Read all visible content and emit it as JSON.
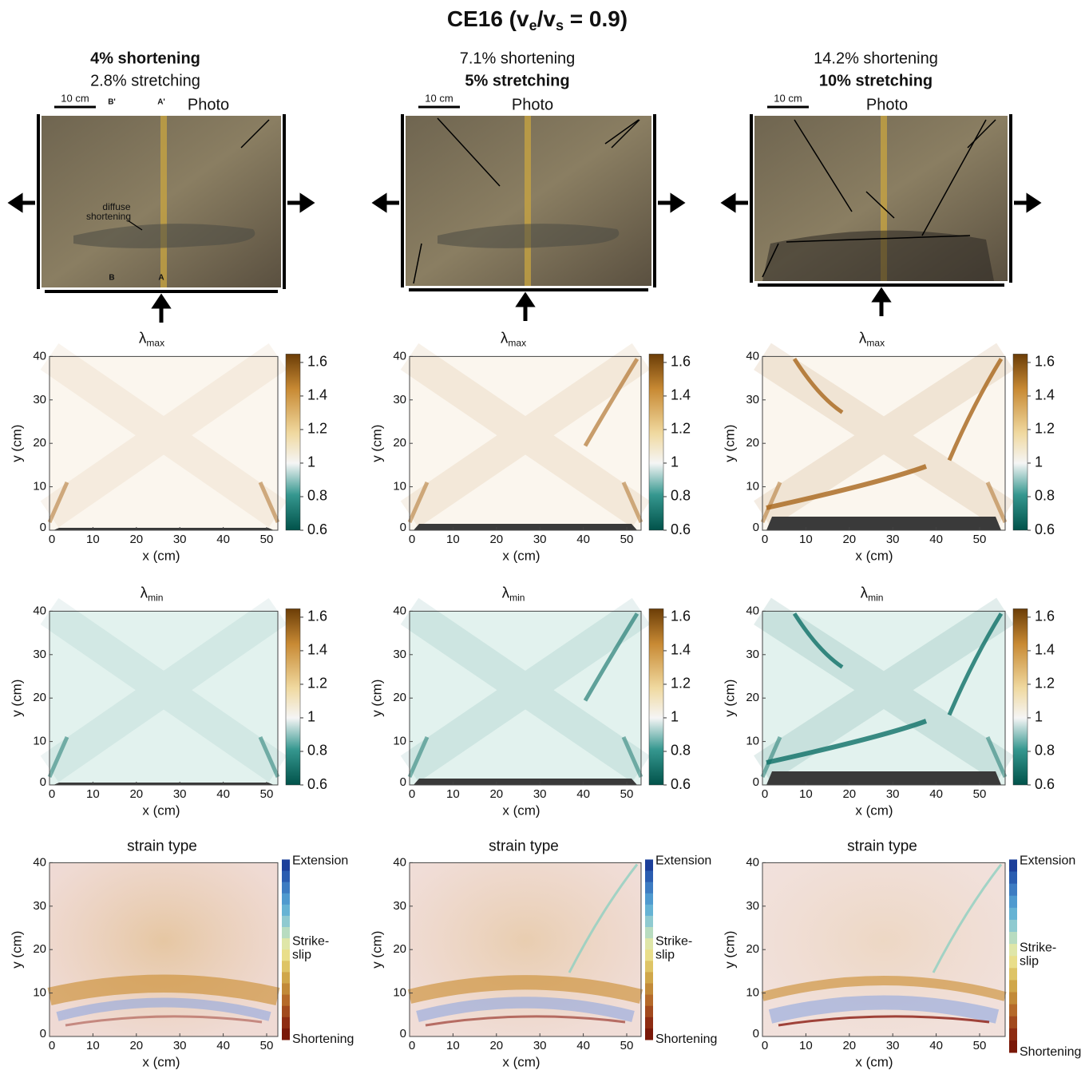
{
  "title": {
    "a": "CE16 (v",
    "b": "e",
    "c": "/v",
    "d": "s",
    "e": " = 0.9)"
  },
  "columns": [
    {
      "lines": [
        "4% shortening",
        "2.8% stretching"
      ],
      "bold": 0,
      "scale": "10 cm",
      "photo": "Photo"
    },
    {
      "lines": [
        "7.1% shortening",
        "5% stretching"
      ],
      "bold": 1,
      "scale": "10 cm",
      "photo": "Photo"
    },
    {
      "lines": [
        "14.2% shortening",
        "10% stretching"
      ],
      "bold": 1,
      "scale": "10 cm",
      "photo": "Photo"
    }
  ],
  "annotations": {
    "b_top": "B'",
    "a_top": "A'",
    "b_bottom": "B",
    "a_bottom": "A",
    "diffuse": [
      "diffuse",
      "shortening"
    ]
  },
  "lambda": {
    "symbol": "λ",
    "max": "max",
    "min": "min"
  },
  "axes": {
    "xlabel": "x (cm)",
    "ylabel": "y (cm)",
    "xlim": [
      0,
      53
    ],
    "ylim": [
      0,
      40
    ],
    "xticks": [
      0,
      10,
      20,
      30,
      40,
      50
    ],
    "yticks": [
      0,
      10,
      20,
      30,
      40
    ]
  },
  "colorbar": {
    "lim": [
      0.6,
      1.65
    ],
    "ticks": [
      0.6,
      0.8,
      1,
      1.2,
      1.4,
      1.6
    ]
  },
  "strain": {
    "title": "strain type",
    "extension": "Extension",
    "strike": [
      "Strike-",
      "slip"
    ],
    "shortening": "Shortening"
  }
}
